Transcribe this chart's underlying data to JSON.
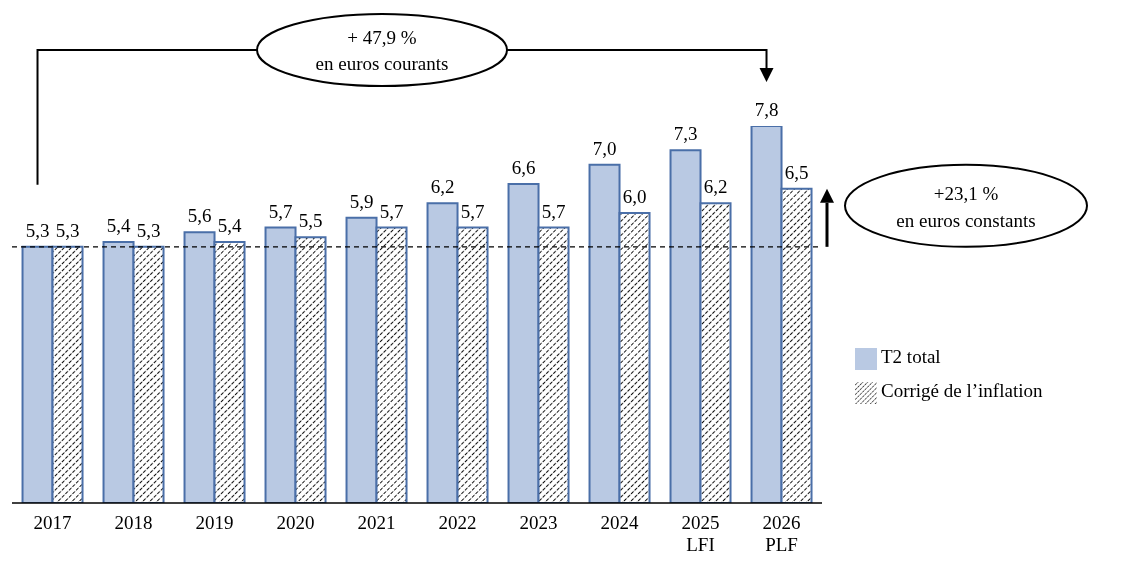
{
  "chart_data": {
    "type": "bar",
    "categories": [
      "2017",
      "2018",
      "2019",
      "2020",
      "2021",
      "2022",
      "2023",
      "2024",
      "2025\nLFI",
      "2026\nPLF"
    ],
    "series": [
      {
        "name": "T2 total",
        "color": "#b9c9e3",
        "values": [
          5.3,
          5.4,
          5.6,
          5.7,
          5.9,
          6.2,
          6.6,
          7.0,
          7.3,
          7.8
        ],
        "value_labels": [
          "5,3",
          "5,4",
          "5,6",
          "5,7",
          "5,9",
          "6,2",
          "6,6",
          "7,0",
          "7,3",
          "7,8"
        ]
      },
      {
        "name": "Corrigé de l’inflation",
        "color": "#4a6fa8",
        "values": [
          5.3,
          5.3,
          5.4,
          5.5,
          5.7,
          5.7,
          5.7,
          6.0,
          6.2,
          6.5
        ],
        "value_labels": [
          "5,3",
          "5,3",
          "5,4",
          "5,5",
          "5,7",
          "5,7",
          "5,7",
          "6,0",
          "6,2",
          "6,5"
        ]
      }
    ],
    "ref_lines": [
      {
        "axis": "y",
        "value": 5.3,
        "color": "#000000",
        "line_style": "dashed"
      }
    ],
    "annotations": [
      "+ 47,9 %\nen euros courants",
      "+23,1 %\nen euros constants"
    ],
    "legend": "right"
  }
}
